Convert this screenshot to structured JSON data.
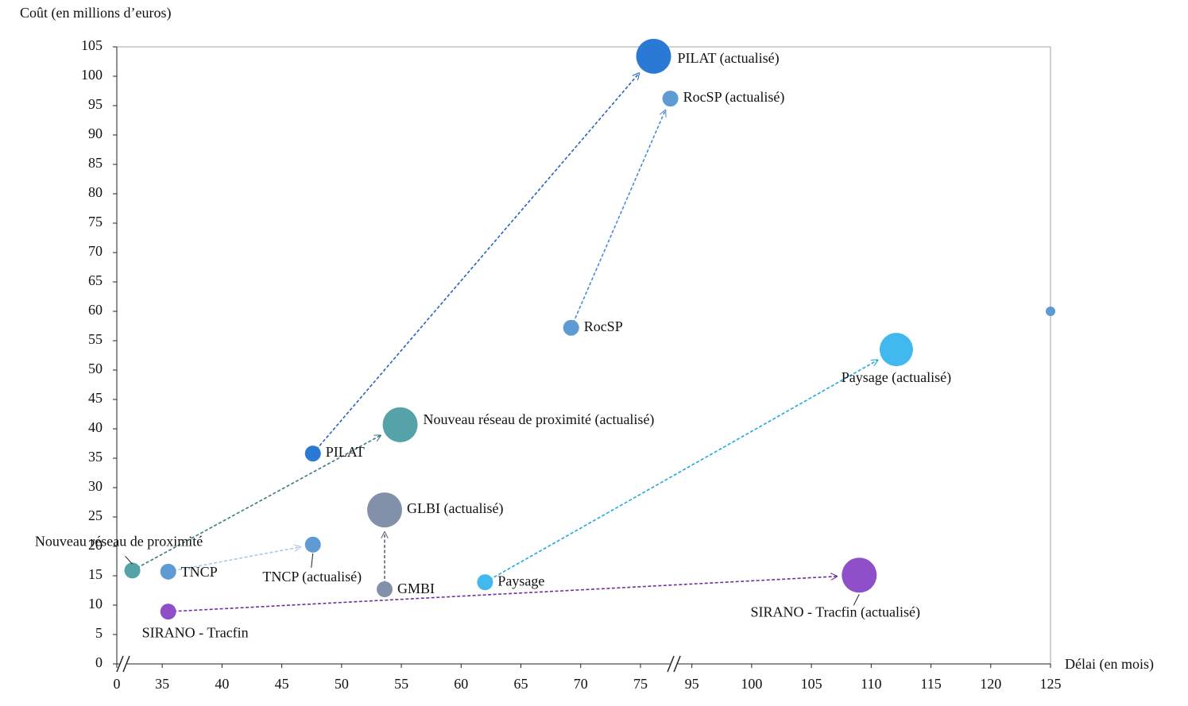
{
  "chart_data": {
    "type": "bubble",
    "y_axis_label": "Coût (en millions d’euros)",
    "x_axis_label": "Délai (en mois)",
    "labels": [
      "PILAT (actualisé)",
      "RocSP (actualisé)",
      "RocSP",
      null,
      "Paysage (actualisé)",
      "Paysage",
      "Nouveau réseau de proximité (actualisé)",
      "Nouveau réseau de proximité",
      "PILAT",
      "TNCP",
      "TNCP (actualisé)",
      "GLBI (actualisé)",
      "GMBI",
      "SIRANO - Tracfin",
      "SIRANO - Tracfin (actualisé)"
    ],
    "x": [
      76.1,
      77.5,
      69.2,
      125,
      112.1,
      62.0,
      54.9,
      32.5,
      47.6,
      35.5,
      47.6,
      53.6,
      53.6,
      35.5,
      109.0
    ],
    "values": [
      103.4,
      96.2,
      57.2,
      60,
      53.5,
      13.9,
      40.7,
      15.9,
      35.8,
      15.7,
      20.3,
      26.2,
      12.7,
      8.9,
      15.1
    ],
    "sizes": [
      22,
      10,
      10,
      6,
      21,
      10,
      22,
      10,
      10,
      10,
      10,
      22,
      10,
      10,
      22
    ],
    "colors": [
      "#2a7ad5",
      "#5f9bd3",
      "#5f9bd3",
      "#5f9bd3",
      "#41b9ee",
      "#41b9ee",
      "#55a3a8",
      "#55a3a8",
      "#2a7ad5",
      "#5f9bd3",
      "#5f9bd3",
      "#8290aa",
      "#8290aa",
      "#8e4fc8",
      "#8e4fc8"
    ],
    "arrows": [
      {
        "from": 7,
        "to": 6,
        "color": "#3b7a80"
      },
      {
        "from": 8,
        "to": 0,
        "color": "#2563c0"
      },
      {
        "from": 2,
        "to": 1,
        "color": "#4a8ad8"
      },
      {
        "from": 9,
        "to": 10,
        "color": "#a8c8e8"
      },
      {
        "from": 12,
        "to": 11,
        "color": "#606878"
      },
      {
        "from": 5,
        "to": 4,
        "color": "#1ea8e0"
      },
      {
        "from": 13,
        "to": 14,
        "color": "#7030a0"
      }
    ],
    "xlim": [
      0,
      125
    ],
    "x_breaks": [
      [
        0,
        31.2
      ],
      [
        77.8,
        93.5
      ]
    ],
    "xticks": [
      0,
      35,
      40,
      45,
      50,
      55,
      60,
      65,
      70,
      75,
      95,
      100,
      105,
      110,
      115,
      120,
      125
    ],
    "ylim": [
      0,
      105
    ],
    "yticks": [
      0,
      5,
      10,
      15,
      20,
      25,
      30,
      35,
      40,
      45,
      50,
      55,
      60,
      65,
      70,
      75,
      80,
      85,
      90,
      95,
      100,
      105
    ]
  }
}
